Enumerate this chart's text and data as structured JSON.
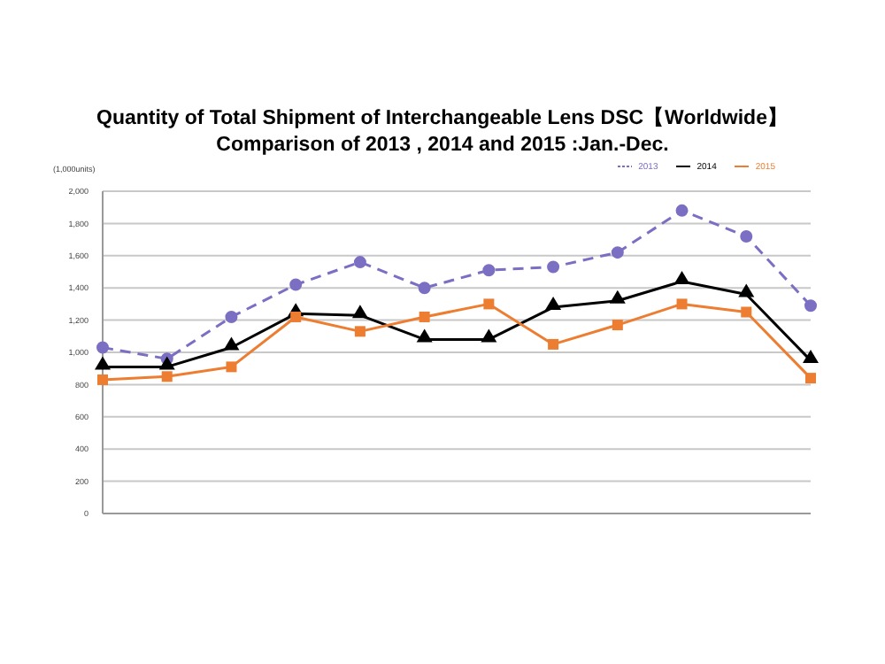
{
  "chart_data": {
    "type": "line",
    "title": "Quantity of Total Shipment of Interchangeable Lens DSC【Worldwide】",
    "subtitle": "Comparison of 2013 , 2014 and 2015 :Jan.-Dec.",
    "ylabel": "(1,000units)",
    "categories": [
      null,
      null,
      null,
      null,
      null,
      null,
      null,
      null,
      null,
      null,
      null,
      null
    ],
    "series": [
      {
        "name": "2013",
        "color": "#7b6fc4",
        "line_style": "dashed",
        "marker": "circle",
        "values": [
          1030,
          960,
          1220,
          1420,
          1560,
          1400,
          1510,
          1530,
          1620,
          1880,
          1720,
          1290
        ]
      },
      {
        "name": "2014",
        "color": "#000000",
        "line_style": "solid",
        "marker": "triangle",
        "values": [
          910,
          910,
          1030,
          1240,
          1230,
          1080,
          1080,
          1280,
          1320,
          1440,
          1360,
          950
        ]
      },
      {
        "name": "2015",
        "color": "#ed7d31",
        "line_style": "solid",
        "marker": "square",
        "values": [
          830,
          850,
          910,
          1220,
          1130,
          1220,
          1300,
          1050,
          1170,
          1300,
          1250,
          840
        ]
      }
    ],
    "ylim": [
      0,
      2000
    ],
    "yticks": [
      {
        "value": 0,
        "label": "0"
      },
      {
        "value": 200,
        "label": "200"
      },
      {
        "value": 400,
        "label": "400"
      },
      {
        "value": 600,
        "label": "600"
      },
      {
        "value": 800,
        "label": "800"
      },
      {
        "value": 1000,
        "label": "1,000"
      },
      {
        "value": 1200,
        "label": "1,200"
      },
      {
        "value": 1400,
        "label": "1,400"
      },
      {
        "value": 1600,
        "label": "1,600"
      },
      {
        "value": 1800,
        "label": "1,800"
      },
      {
        "value": 2000,
        "label": "2,000"
      }
    ],
    "grid": "y",
    "legend": "top right"
  }
}
